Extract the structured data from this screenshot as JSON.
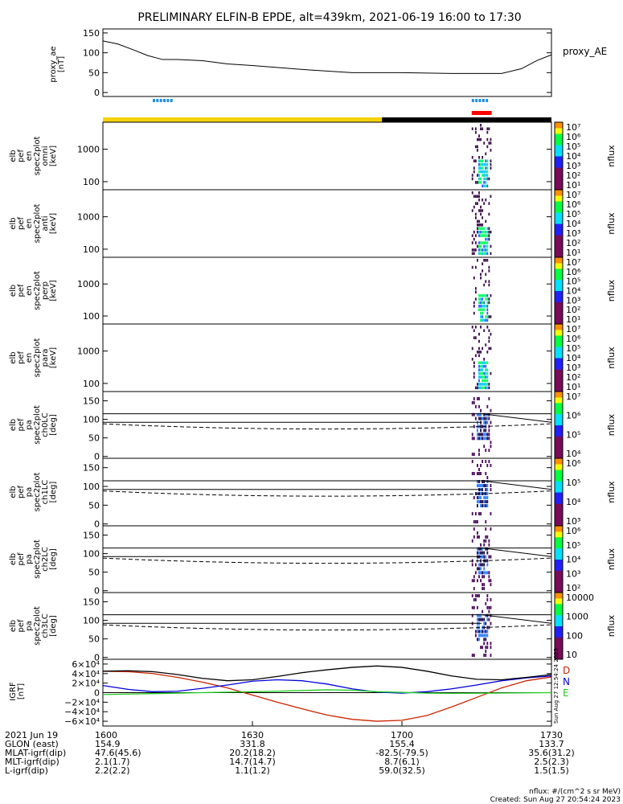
{
  "title": "PRELIMINARY ELFIN-B EPDE, alt=439km, 2021-06-19 16:00 to 17:30",
  "colors": {
    "sunlit_bar": "#f5d20a",
    "eclipse_bar": "#000000",
    "science_zone_blue": "#1e8fe6",
    "science_zone_red": "#ff0000",
    "geo_D": "#cc2200",
    "geo_N": "#0000dd",
    "geo_E": "#22cc22",
    "geo_total": "#000000"
  },
  "chart_data": [
    {
      "type": "line",
      "name": "proxy_ae",
      "ylabel": "proxy_ae\n[nT]",
      "legend": "proxy_AE",
      "ylim": [
        -10,
        160
      ],
      "yticks": [
        "150",
        "100",
        "50",
        "0"
      ],
      "x": [
        0,
        3,
        6,
        9,
        12,
        15,
        20,
        25,
        30,
        40,
        50,
        60,
        70,
        75,
        80,
        84,
        87,
        90
      ],
      "y": [
        130,
        122,
        108,
        93,
        83,
        83,
        80,
        72,
        68,
        58,
        50,
        50,
        48,
        48,
        48,
        60,
        80,
        95
      ],
      "science_zones_blue": [
        [
          10,
          13.5
        ],
        [
          74,
          77.5
        ]
      ],
      "science_zones_red": [
        [
          74,
          78
        ]
      ]
    },
    {
      "type": "heatmap",
      "name": "elb_pef_en_spec2plot_omni",
      "ylabel": "elb\npef\nen\nspec2plot\nomni\n[keV]",
      "yticks": [
        "1000",
        "100"
      ],
      "colorbar": {
        "label": "nflux",
        "ticks": [
          "10⁷",
          "10⁶",
          "10⁵",
          "10⁴",
          "10³",
          "10²",
          "10¹"
        ]
      },
      "active_time_range": [
        74,
        78
      ]
    },
    {
      "type": "heatmap",
      "name": "elb_pef_en_spec2plot_anti",
      "ylabel": "elb\npef\nen\nspec2plot\nanti\n[keV]",
      "yticks": [
        "1000",
        "100"
      ],
      "colorbar": {
        "label": "nflux",
        "ticks": [
          "10⁷",
          "10⁶",
          "10⁵",
          "10⁴",
          "10³",
          "10²",
          "10¹"
        ]
      },
      "active_time_range": [
        74,
        78
      ]
    },
    {
      "type": "heatmap",
      "name": "elb_pef_en_spec2plot_perp",
      "ylabel": "elb\npef\nen\nspec2plot\nperp\n[keV]",
      "yticks": [
        "1000",
        "100"
      ],
      "colorbar": {
        "label": "nflux",
        "ticks": [
          "10⁷",
          "10⁶",
          "10⁵",
          "10⁴",
          "10³",
          "10²",
          "10¹"
        ]
      },
      "active_time_range": [
        74,
        78
      ]
    },
    {
      "type": "heatmap",
      "name": "elb_pef_en_spec2plot_para",
      "ylabel": "elb\npef\nen\nspec2plot\npara\n[keV]",
      "yticks": [
        "1000",
        "100"
      ],
      "colorbar": {
        "label": "nflux",
        "ticks": [
          "10⁷",
          "10⁶",
          "10⁵",
          "10⁴",
          "10³",
          "10²",
          "10¹"
        ]
      },
      "active_time_range": [
        74,
        78
      ]
    },
    {
      "type": "heatmap",
      "name": "elb_pef_pa_spec2plot_ch0LC",
      "ylabel": "elb\npef\npa\nspec2plot\nch0LC\n[deg]",
      "yticks": [
        "150",
        "100",
        "50",
        "0"
      ],
      "colorbar": {
        "label": "nflux",
        "ticks": [
          "10⁷",
          "10⁶",
          "10⁵",
          "10⁴"
        ]
      },
      "active_time_range": [
        74,
        78
      ]
    },
    {
      "type": "heatmap",
      "name": "elb_pef_pa_spec2plot_ch1LC",
      "ylabel": "elb\npef\npa\nspec2plot\nch1LC\n[deg]",
      "yticks": [
        "150",
        "100",
        "50",
        "0"
      ],
      "colorbar": {
        "label": "nflux",
        "ticks": [
          "10⁶",
          "10⁵",
          "10⁴",
          "10³"
        ]
      },
      "active_time_range": [
        74,
        78
      ]
    },
    {
      "type": "heatmap",
      "name": "elb_pef_pa_spec2plot_ch2LC",
      "ylabel": "elb\npef\npa\nspec2plot\nch2LC\n[deg]",
      "yticks": [
        "150",
        "100",
        "50",
        "0"
      ],
      "colorbar": {
        "label": "nflux",
        "ticks": [
          "10⁶",
          "10⁵",
          "10⁴",
          "10³",
          "10²"
        ]
      },
      "active_time_range": [
        74,
        78
      ]
    },
    {
      "type": "heatmap",
      "name": "elb_pef_pa_spec2plot_ch3LC",
      "ylabel": "elb\npef\npa\nspec2plot\nch3LC\n[deg]",
      "yticks": [
        "150",
        "100",
        "50",
        "0"
      ],
      "colorbar": {
        "label": "nflux",
        "ticks": [
          "10000",
          "1000",
          "100",
          "10"
        ]
      },
      "active_time_range": [
        74,
        78
      ]
    },
    {
      "type": "line",
      "name": "IGRF",
      "ylabel": "IGRF\n[nT]",
      "ylim": [
        -70000,
        70000
      ],
      "yticks": [
        "6×10⁴",
        "4×10⁴",
        "2×10⁴",
        "0",
        "−2×10⁴",
        "−4×10⁴",
        "−6×10⁴"
      ],
      "legend": [
        "D",
        "N",
        "E"
      ],
      "x": [
        0,
        5,
        10,
        15,
        20,
        25,
        30,
        35,
        40,
        45,
        50,
        55,
        60,
        65,
        70,
        75,
        80,
        85,
        90
      ],
      "series": [
        {
          "name": "D",
          "values": [
            45000,
            44000,
            40000,
            32000,
            22000,
            10000,
            -5000,
            -20000,
            -34000,
            -47000,
            -56000,
            -60000,
            -58000,
            -48000,
            -30000,
            -10000,
            10000,
            25000,
            33000
          ]
        },
        {
          "name": "N",
          "values": [
            15000,
            7000,
            2000,
            3000,
            9000,
            16000,
            24000,
            27000,
            25000,
            18000,
            8000,
            1000,
            -1000,
            2000,
            8000,
            16000,
            25000,
            31000,
            35000
          ]
        },
        {
          "name": "E",
          "values": [
            -4000,
            -3000,
            -2000,
            -1000,
            0,
            1000,
            2000,
            3000,
            4500,
            6000,
            5000,
            2000,
            500,
            -1000,
            -1500,
            -1200,
            -800,
            -400,
            0
          ]
        },
        {
          "name": "total",
          "values": [
            45000,
            46000,
            44000,
            38000,
            30000,
            25000,
            27000,
            34000,
            42000,
            48000,
            53000,
            56000,
            53000,
            45000,
            35000,
            28000,
            27000,
            32000,
            38000
          ]
        }
      ]
    }
  ],
  "xaxis": {
    "ticks": [
      {
        "x": 0,
        "label": "1600"
      },
      {
        "x": 30,
        "label": "1630"
      },
      {
        "x": 60,
        "label": "1700"
      },
      {
        "x": 90,
        "label": "1730"
      }
    ]
  },
  "footer": {
    "rows": [
      {
        "label": "2021 Jun 19",
        "values": [
          "1600",
          "1630",
          "1700",
          "1730"
        ]
      },
      {
        "label": "GLON (east)",
        "values": [
          "154.9",
          "331.8",
          "155.4",
          "133.7"
        ]
      },
      {
        "label": "MLAT-igrf(dip)",
        "values": [
          "47.6(45.6)",
          "20.2(18.2)",
          "-82.5(-79.5)",
          "35.6(31.2)"
        ]
      },
      {
        "label": "MLT-igrf(dip)",
        "values": [
          "2.1(1.7)",
          "14.7(14.7)",
          "8.7(6.1)",
          "2.5(2.3)"
        ]
      },
      {
        "label": "L-igrf(dip)",
        "values": [
          "2.2(2.2)",
          "1.1(1.2)",
          "59.0(32.5)",
          "1.5(1.5)"
        ]
      }
    ],
    "units": "nflux: #/(cm^2 s sr MeV)",
    "created": "Created: Sun Aug 27 20:54:24 2023",
    "side_stamp": "Sun Aug 27 12:54:24 2023"
  }
}
